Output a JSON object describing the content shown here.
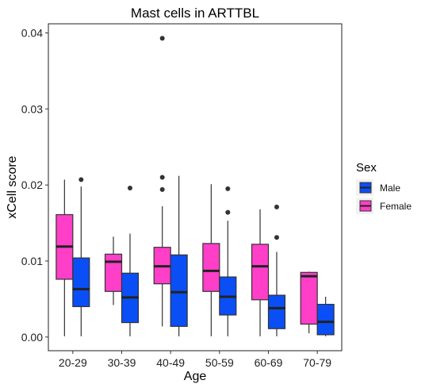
{
  "chart_data": {
    "type": "boxplot",
    "title": "Mast cells in ARTTBL",
    "xlabel": "Age",
    "ylabel": "xCell score",
    "categories": [
      "20-29",
      "30-39",
      "40-49",
      "50-59",
      "60-69",
      "70-79"
    ],
    "ylim": [
      -0.0018,
      0.0412
    ],
    "yticks": [
      {
        "value": 0.0,
        "label": "0.00"
      },
      {
        "value": 0.01,
        "label": "0.01"
      },
      {
        "value": 0.02,
        "label": "0.02"
      },
      {
        "value": 0.03,
        "label": "0.03"
      },
      {
        "value": 0.04,
        "label": "0.04"
      }
    ],
    "grid": false,
    "legend": {
      "title": "Sex",
      "position": "right",
      "entries": [
        {
          "name": "Male",
          "color": "#0a4ff5"
        },
        {
          "name": "Female",
          "color": "#ff3fc8"
        }
      ]
    },
    "series": [
      {
        "name": "Female",
        "color": "#ff3fc8",
        "boxes": [
          {
            "category": "20-29",
            "whisker_low": 0.0001,
            "q1": 0.0076,
            "median": 0.0119,
            "q3": 0.0161,
            "whisker_high": 0.0207,
            "outliers": []
          },
          {
            "category": "30-39",
            "whisker_low": 0.0042,
            "q1": 0.006,
            "median": 0.0099,
            "q3": 0.0109,
            "whisker_high": 0.0132,
            "outliers": []
          },
          {
            "category": "40-49",
            "whisker_low": 0.0014,
            "q1": 0.007,
            "median": 0.0093,
            "q3": 0.0118,
            "whisker_high": 0.0172,
            "outliers": [
              0.0194,
              0.021,
              0.0393
            ]
          },
          {
            "category": "50-59",
            "whisker_low": 0.0001,
            "q1": 0.006,
            "median": 0.0087,
            "q3": 0.0123,
            "whisker_high": 0.0201,
            "outliers": []
          },
          {
            "category": "60-69",
            "whisker_low": 0.0001,
            "q1": 0.0049,
            "median": 0.0093,
            "q3": 0.0122,
            "whisker_high": 0.0168,
            "outliers": []
          },
          {
            "category": "70-79",
            "whisker_low": 0.0005,
            "q1": 0.0017,
            "median": 0.008,
            "q3": 0.0085,
            "whisker_high": 0.0086,
            "outliers": []
          }
        ]
      },
      {
        "name": "Male",
        "color": "#0a4ff5",
        "boxes": [
          {
            "category": "20-29",
            "whisker_low": 0.0001,
            "q1": 0.004,
            "median": 0.0063,
            "q3": 0.0104,
            "whisker_high": 0.0198,
            "outliers": [
              0.0207
            ]
          },
          {
            "category": "30-39",
            "whisker_low": 0.0001,
            "q1": 0.0019,
            "median": 0.0052,
            "q3": 0.0084,
            "whisker_high": 0.0136,
            "outliers": [
              0.0196
            ]
          },
          {
            "category": "40-49",
            "whisker_low": 0.0001,
            "q1": 0.0014,
            "median": 0.0059,
            "q3": 0.0108,
            "whisker_high": 0.0212,
            "outliers": []
          },
          {
            "category": "50-59",
            "whisker_low": 0.0001,
            "q1": 0.0029,
            "median": 0.0053,
            "q3": 0.0079,
            "whisker_high": 0.0153,
            "outliers": [
              0.0164,
              0.0195
            ]
          },
          {
            "category": "60-69",
            "whisker_low": 0.0001,
            "q1": 0.0011,
            "median": 0.0038,
            "q3": 0.0055,
            "whisker_high": 0.0112,
            "outliers": [
              0.0131,
              0.0171
            ]
          },
          {
            "category": "70-79",
            "whisker_low": 0.0001,
            "q1": 0.0003,
            "median": 0.002,
            "q3": 0.0043,
            "whisker_high": 0.0053,
            "outliers": []
          }
        ]
      }
    ]
  }
}
